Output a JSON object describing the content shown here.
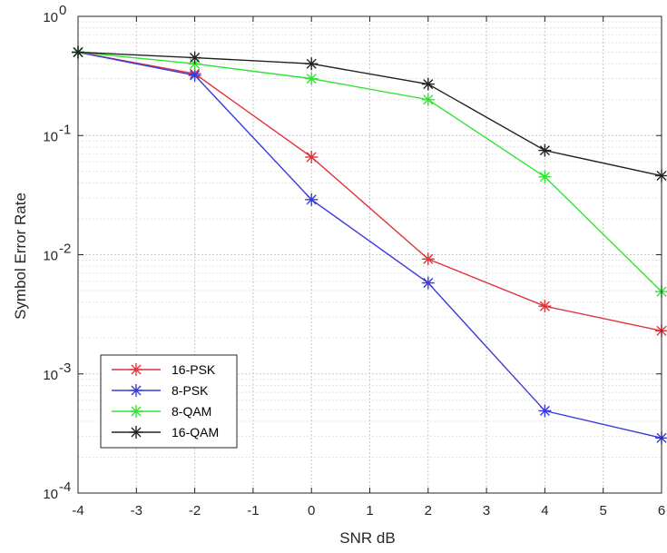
{
  "chart_data": {
    "type": "line",
    "xlabel": "SNR dB",
    "ylabel": "Symbol Error Rate",
    "y_scale": "log",
    "xlim": [
      -4,
      6
    ],
    "ylim": [
      0.0001,
      1
    ],
    "x_ticks": [
      "-4",
      "-3",
      "-2",
      "-1",
      "0",
      "1",
      "2",
      "3",
      "4",
      "5",
      "6"
    ],
    "y_ticks": [
      {
        "value": 1,
        "base": "10",
        "exp": "0"
      },
      {
        "value": 0.1,
        "base": "10",
        "exp": "-1"
      },
      {
        "value": 0.01,
        "base": "10",
        "exp": "-2"
      },
      {
        "value": 0.001,
        "base": "10",
        "exp": "-3"
      },
      {
        "value": 0.0001,
        "base": "10",
        "exp": "-4"
      }
    ],
    "grid": true,
    "legend_position": "bottom-left",
    "x": [
      -4,
      -2,
      0,
      2,
      4,
      6
    ],
    "series": [
      {
        "name": "16-PSK",
        "color": "#e0343a",
        "values": [
          0.5,
          0.33,
          0.066,
          0.0092,
          0.0037,
          0.0023
        ]
      },
      {
        "name": "8-PSK",
        "color": "#3a3ad8",
        "values": [
          0.5,
          0.32,
          0.029,
          0.0058,
          0.00049,
          0.00029
        ]
      },
      {
        "name": "8-QAM",
        "color": "#33e233",
        "values": [
          0.5,
          0.4,
          0.3,
          0.2,
          0.045,
          0.0049
        ]
      },
      {
        "name": "16-QAM",
        "color": "#222222",
        "values": [
          0.5,
          0.45,
          0.4,
          0.27,
          0.075,
          0.046
        ]
      }
    ]
  }
}
